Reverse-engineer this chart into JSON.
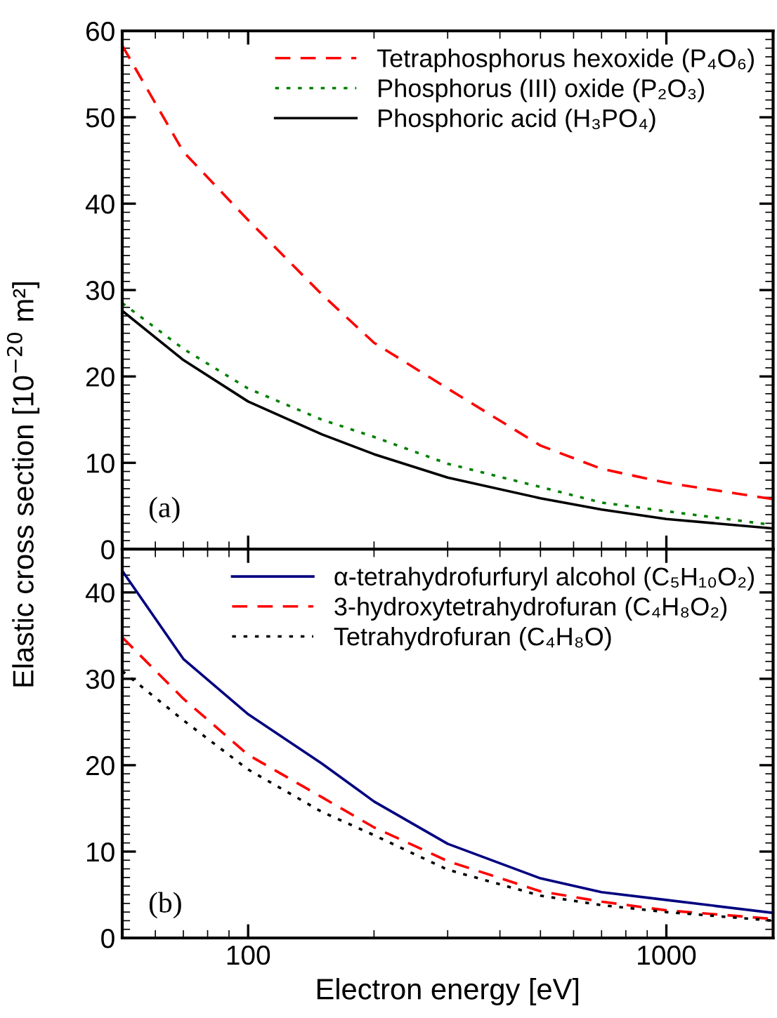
{
  "chart_data": [
    {
      "type": "line",
      "x": [
        50,
        70,
        100,
        150,
        200,
        300,
        500,
        700,
        1000,
        1800
      ],
      "xlim": [
        50,
        1800
      ],
      "xticks": [
        100,
        1000
      ],
      "log": "x",
      "ylim": [
        0,
        60
      ],
      "yticks": [
        0,
        10,
        20,
        30,
        40,
        50,
        60
      ],
      "ylabel": "Elastic cross section [10$^{−20}$ m²]",
      "tick_labels": "y",
      "legend": "top right",
      "annotations": [
        "(a)"
      ],
      "series": [
        {
          "name": "Tetraphosphorus hexoxide (P₄O₆)",
          "color": "#ff0000",
          "line_style": "dashed",
          "values": [
            58.3,
            46,
            38.1,
            29.5,
            23.9,
            18.6,
            12.0,
            9.3,
            7.7,
            5.8
          ]
        },
        {
          "name": "Phosphorus (III) oxide (P₂O₃)",
          "color": "#008000",
          "line_style": "dotted",
          "values": [
            28.5,
            23.2,
            18.6,
            15,
            13,
            9.9,
            7.2,
            5.4,
            4.4,
            2.8
          ]
        },
        {
          "name": "Phosphoric acid (H₃PO₄)",
          "color": "#000000",
          "line_style": "solid",
          "values": [
            27.6,
            21.9,
            17.1,
            13.3,
            11,
            8.3,
            5.9,
            4.6,
            3.5,
            2.4
          ]
        }
      ]
    },
    {
      "type": "line",
      "x": [
        50,
        70,
        100,
        150,
        200,
        300,
        500,
        700,
        1000,
        1800
      ],
      "xlim": [
        50,
        1800
      ],
      "xticks": [
        100,
        1000
      ],
      "log": "x",
      "ylim": [
        0,
        45
      ],
      "yticks": [
        0,
        10,
        20,
        30,
        40
      ],
      "xlabel": "Electron energy [eV]",
      "legend": "top right",
      "annotations": [
        "(b)"
      ],
      "series": [
        {
          "name": "α-tetrahydrofurfuryl alcohol (C₅H₁₀O₂)",
          "color": "#000080",
          "line_style": "solid",
          "values": [
            42.5,
            32.3,
            25.9,
            20.2,
            15.8,
            10.9,
            6.9,
            5.3,
            4.4,
            2.9
          ]
        },
        {
          "name": "3-hydroxytetrahydrofuran (C₄H₈O₂)",
          "color": "#ff0000",
          "line_style": "dashed",
          "values": [
            34.8,
            27.7,
            21.2,
            16.3,
            12.8,
            8.9,
            5.4,
            4.2,
            3.2,
            2.2
          ]
        },
        {
          "name": "Tetrahydrofuran (C₄H₈O)",
          "color": "#000000",
          "line_style": "dotted",
          "values": [
            30.9,
            25.2,
            19.5,
            14.6,
            11.9,
            7.9,
            4.9,
            3.8,
            3.0,
            2.0
          ]
        }
      ]
    }
  ]
}
